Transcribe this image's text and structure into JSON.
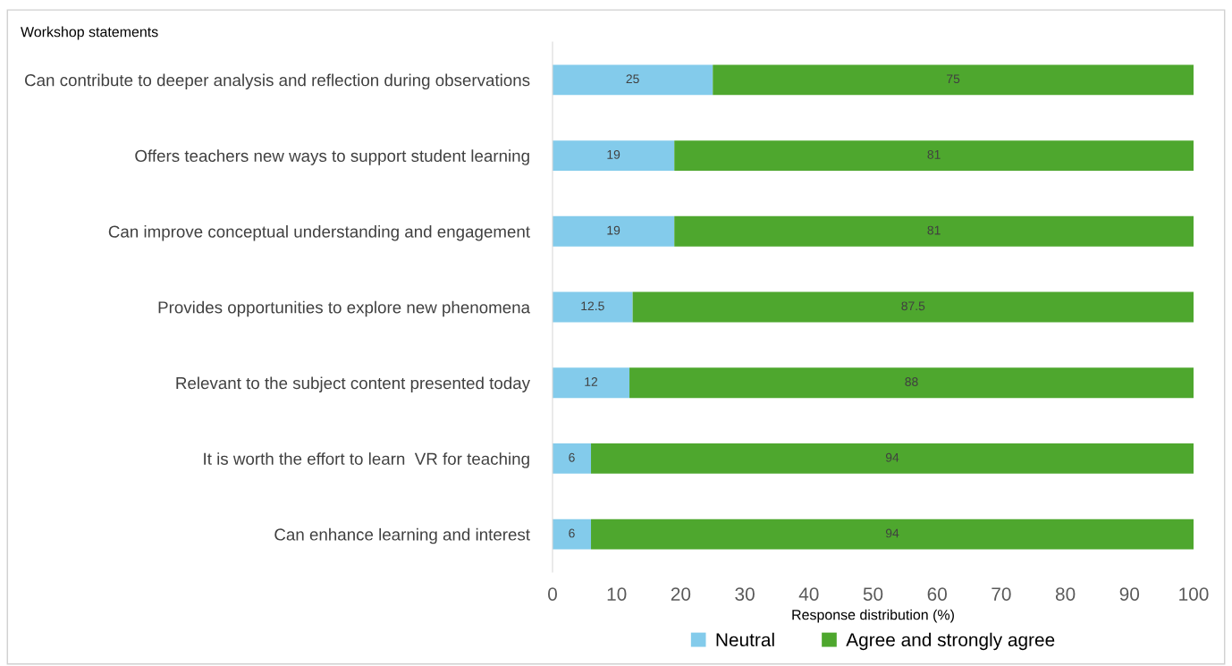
{
  "chart_data": {
    "type": "bar",
    "orientation": "horizontal",
    "stacked": true,
    "ylabel": "Workshop statements",
    "xlabel": "Response distribution (%)",
    "categories": [
      "Can contribute to deeper analysis and reflection during observations",
      "Offers teachers new ways to support student learning",
      "Can improve conceptual understanding and engagement",
      "Provides opportunities to explore new phenomena",
      "Relevant to the subject content presented today",
      "It is worth the effort to learn  VR for teaching",
      "Can enhance learning and interest"
    ],
    "series": [
      {
        "name": "Neutral",
        "color": "#83cbeb",
        "values": [
          25,
          19,
          19,
          12.5,
          12,
          6,
          6
        ]
      },
      {
        "name": "Agree and strongly agree",
        "color": "#4ea72e",
        "values": [
          75,
          81,
          81,
          87.5,
          88,
          94,
          94
        ]
      }
    ],
    "xlim": [
      0,
      100
    ],
    "xticks": [
      0,
      10,
      20,
      30,
      40,
      50,
      60,
      70,
      80,
      90,
      100
    ],
    "data_labels": true,
    "legend": "bottom",
    "grid": false
  }
}
